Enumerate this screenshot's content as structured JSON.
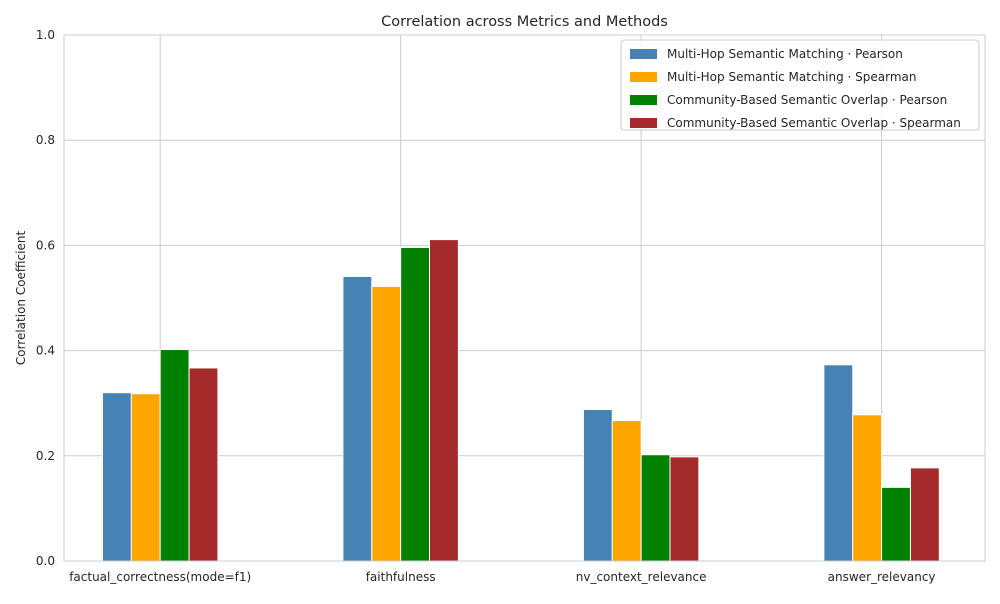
{
  "chart_data": {
    "type": "bar",
    "title": "Correlation across Metrics and Methods",
    "xlabel": "",
    "ylabel": "Correlation Coefficient",
    "ylim": [
      0,
      1.0
    ],
    "yticks": [
      "0.0",
      "0.2",
      "0.4",
      "0.6",
      "0.8",
      "1.0"
    ],
    "grid": true,
    "legend_position": "top-right",
    "categories": [
      "factual_correctness(mode=f1)",
      "faithfulness",
      "nv_context_relevance",
      "answer_relevancy"
    ],
    "series": [
      {
        "name": "Multi-Hop Semantic Matching · Pearson",
        "color": "#4682b4",
        "values": [
          0.32,
          0.541,
          0.288,
          0.373
        ]
      },
      {
        "name": "Multi-Hop Semantic Matching · Spearman",
        "color": "#ffa500",
        "values": [
          0.318,
          0.522,
          0.267,
          0.278
        ]
      },
      {
        "name": "Community-Based Semantic Overlap · Pearson",
        "color": "#008000",
        "values": [
          0.402,
          0.596,
          0.202,
          0.14
        ]
      },
      {
        "name": "Community-Based Semantic Overlap · Spearman",
        "color": "#a52a2a",
        "values": [
          0.367,
          0.611,
          0.198,
          0.177
        ]
      }
    ]
  }
}
